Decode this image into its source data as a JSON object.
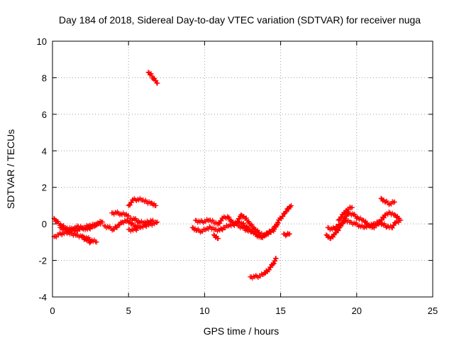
{
  "chart_data": {
    "type": "scatter",
    "title": "Day 184 of 2018, Sidereal Day-to-day VTEC variation (SDTVAR) for receiver nuga",
    "xlabel": "GPS time / hours",
    "ylabel": "SDTVAR / TECUs",
    "xlim": [
      0,
      25
    ],
    "ylim": [
      -4,
      10
    ],
    "xticks": [
      0,
      5,
      10,
      15,
      20,
      25
    ],
    "yticks": [
      -4,
      -2,
      0,
      2,
      4,
      6,
      8,
      10
    ],
    "grid": true,
    "marker": "plus",
    "series_color": "#ff0000",
    "series": [
      {
        "name": "SDTVAR",
        "clusters": [
          {
            "x": [
              0.1,
              0.3,
              0.6,
              0.9,
              1.2,
              1.5,
              1.8,
              2.1,
              2.4,
              2.7,
              3.0,
              3.3
            ],
            "y": [
              0.3,
              0.1,
              -0.1,
              -0.25,
              -0.3,
              -0.35,
              -0.3,
              -0.2,
              -0.1,
              -0.1,
              0.0,
              0.1
            ]
          },
          {
            "x": [
              0.1,
              0.4,
              0.7,
              1.0,
              1.3,
              1.6,
              1.9,
              2.2,
              2.5
            ],
            "y": [
              -0.7,
              -0.6,
              -0.5,
              -0.5,
              -0.55,
              -0.6,
              -0.7,
              -0.85,
              -1.0
            ]
          },
          {
            "x": [
              0.5,
              0.8,
              1.1,
              1.4,
              1.7,
              2.0,
              2.3,
              2.6,
              2.9,
              3.2
            ],
            "y": [
              -0.2,
              -0.3,
              -0.35,
              -0.25,
              -0.15,
              -0.2,
              -0.3,
              -0.15,
              0.0,
              0.1
            ]
          },
          {
            "x": [
              2.0,
              2.3,
              2.6,
              2.9
            ],
            "y": [
              -0.7,
              -0.8,
              -0.9,
              -1.0
            ]
          },
          {
            "x": [
              3.4,
              3.7,
              4.0,
              4.3,
              4.6,
              4.9,
              5.2,
              5.5,
              5.8,
              6.1,
              6.4,
              6.7,
              6.9
            ],
            "y": [
              -0.1,
              -0.2,
              -0.3,
              -0.1,
              0.1,
              0.2,
              0.0,
              -0.15,
              -0.2,
              -0.1,
              0.0,
              0.0,
              0.1
            ]
          },
          {
            "x": [
              3.9,
              4.2,
              4.5,
              4.8,
              5.0
            ],
            "y": [
              0.6,
              0.6,
              0.55,
              0.5,
              0.45
            ]
          },
          {
            "x": [
              5.1,
              5.4,
              5.7,
              6.0,
              6.3,
              6.6
            ],
            "y": [
              0.3,
              0.25,
              0.1,
              0.05,
              0.1,
              0.2
            ]
          },
          {
            "x": [
              5.0,
              5.3,
              5.6
            ],
            "y": [
              -0.3,
              -0.35,
              -0.25
            ]
          },
          {
            "x": [
              5.0,
              5.3,
              5.6,
              5.9,
              6.2,
              6.5,
              6.8
            ],
            "y": [
              1.0,
              1.3,
              1.35,
              1.3,
              1.2,
              1.15,
              1.0
            ]
          },
          {
            "x": [
              6.3,
              6.45,
              6.6,
              6.75,
              6.9
            ],
            "y": [
              8.3,
              8.2,
              8.0,
              7.85,
              7.7
            ]
          },
          {
            "x": [
              9.2,
              9.5,
              9.8,
              10.1,
              10.4,
              10.7,
              11.0,
              11.3,
              11.6,
              11.9,
              12.2,
              12.5,
              12.8,
              13.1,
              13.4,
              13.7,
              14.0,
              14.3,
              14.6
            ],
            "y": [
              -0.2,
              -0.35,
              -0.4,
              -0.3,
              -0.2,
              -0.3,
              -0.35,
              -0.2,
              -0.1,
              -0.05,
              0.1,
              0.0,
              -0.2,
              -0.4,
              -0.6,
              -0.75,
              -0.6,
              -0.45,
              -0.3
            ]
          },
          {
            "x": [
              9.4,
              9.7,
              10.0,
              10.3,
              10.6,
              10.9,
              11.2,
              11.5,
              11.8,
              12.1,
              12.4,
              12.7,
              13.0,
              13.3,
              13.6,
              13.9,
              14.2,
              14.5,
              14.8
            ],
            "y": [
              0.2,
              0.1,
              0.15,
              0.2,
              0.1,
              0.0,
              0.3,
              0.4,
              0.1,
              0.0,
              0.5,
              0.3,
              0.0,
              -0.3,
              -0.5,
              -0.6,
              -0.5,
              -0.3,
              0.0
            ]
          },
          {
            "x": [
              10.6,
              10.9
            ],
            "y": [
              -0.6,
              -0.8
            ]
          },
          {
            "x": [
              12.2,
              12.5,
              12.8,
              13.1
            ],
            "y": [
              -0.1,
              -0.2,
              -0.35,
              -0.45
            ]
          },
          {
            "x": [
              13.0,
              13.3,
              13.6,
              13.9,
              14.2,
              14.5,
              14.7
            ],
            "y": [
              -2.9,
              -2.9,
              -2.85,
              -2.75,
              -2.5,
              -2.2,
              -1.9
            ]
          },
          {
            "x": [
              14.7,
              14.9,
              15.1,
              15.3,
              15.5,
              15.7
            ],
            "y": [
              -0.1,
              0.2,
              0.4,
              0.6,
              0.85,
              1.0
            ]
          },
          {
            "x": [
              15.2,
              15.4,
              15.6
            ],
            "y": [
              -0.55,
              -0.6,
              -0.55
            ]
          },
          {
            "x": [
              18.1,
              18.4,
              18.7,
              19.0,
              19.3,
              19.6,
              19.9,
              20.2,
              20.5,
              20.8,
              21.1,
              21.4,
              21.7,
              22.0,
              22.3,
              22.6,
              22.9
            ],
            "y": [
              -0.2,
              -0.3,
              -0.15,
              0.0,
              0.2,
              0.1,
              0.0,
              -0.1,
              -0.2,
              -0.1,
              0.0,
              0.1,
              0.0,
              -0.15,
              -0.2,
              0.1,
              0.2
            ]
          },
          {
            "x": [
              18.0,
              18.3,
              18.6,
              18.9,
              19.2,
              19.5,
              19.8,
              20.1,
              20.4,
              20.7,
              21.0,
              21.3,
              21.6,
              21.9,
              22.2,
              22.5,
              22.8
            ],
            "y": [
              -0.6,
              -0.8,
              -0.5,
              -0.2,
              0.3,
              0.6,
              0.5,
              0.3,
              0.2,
              0.0,
              -0.2,
              -0.1,
              0.2,
              0.5,
              0.6,
              0.5,
              0.3
            ]
          },
          {
            "x": [
              18.8,
              19.1,
              19.4,
              19.7
            ],
            "y": [
              0.2,
              0.5,
              0.8,
              0.9
            ]
          },
          {
            "x": [
              21.6,
              21.9,
              22.2,
              22.5
            ],
            "y": [
              1.4,
              1.2,
              1.1,
              1.2
            ]
          }
        ]
      }
    ]
  }
}
